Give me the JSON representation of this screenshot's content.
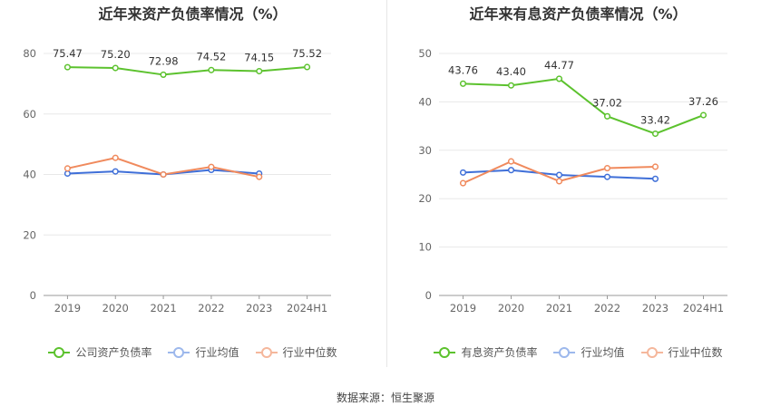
{
  "chart_data": [
    {
      "type": "line",
      "title": "近年来资产负债率情况（%）",
      "categories": [
        "2019",
        "2020",
        "2021",
        "2022",
        "2023",
        "2024H1"
      ],
      "ylim": [
        0,
        80
      ],
      "yticks": [
        0,
        20,
        40,
        60,
        80
      ],
      "grid": true,
      "series": [
        {
          "name": "公司资产负债率",
          "color": "#5cc22e",
          "values": [
            75.47,
            75.2,
            72.98,
            74.52,
            74.15,
            75.52
          ],
          "labels": [
            "75.47",
            "75.20",
            "72.98",
            "74.52",
            "74.15",
            "75.52"
          ]
        },
        {
          "name": "行业均值",
          "color": "#3f6fd8",
          "legend_color": "#9db8ec",
          "values": [
            40.3,
            41.0,
            40.0,
            41.5,
            40.3,
            null
          ]
        },
        {
          "name": "行业中位数",
          "color": "#f08a5d",
          "legend_color": "#f5b79c",
          "values": [
            42.0,
            45.5,
            40.0,
            42.5,
            39.2,
            null
          ]
        }
      ]
    },
    {
      "type": "line",
      "title": "近年来有息资产负债率情况（%）",
      "categories": [
        "2019",
        "2020",
        "2021",
        "2022",
        "2023",
        "2024H1"
      ],
      "ylim": [
        0,
        50
      ],
      "yticks": [
        0,
        10,
        20,
        30,
        40,
        50
      ],
      "grid": true,
      "series": [
        {
          "name": "有息资产负债率",
          "color": "#5cc22e",
          "values": [
            43.76,
            43.4,
            44.77,
            37.02,
            33.42,
            37.26
          ],
          "labels": [
            "43.76",
            "43.40",
            "44.77",
            "37.02",
            "33.42",
            "37.26"
          ]
        },
        {
          "name": "行业均值",
          "color": "#3f6fd8",
          "legend_color": "#9db8ec",
          "values": [
            25.4,
            25.9,
            24.9,
            24.5,
            24.1,
            null
          ]
        },
        {
          "name": "行业中位数",
          "color": "#f08a5d",
          "legend_color": "#f5b79c",
          "values": [
            23.2,
            27.7,
            23.6,
            26.3,
            26.6,
            null
          ]
        }
      ]
    }
  ],
  "source": "数据来源：恒生聚源"
}
